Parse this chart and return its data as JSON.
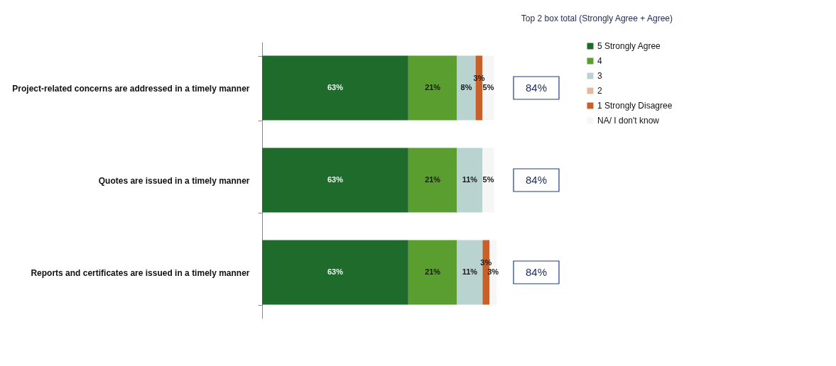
{
  "chart_data": {
    "type": "bar",
    "orientation": "horizontal",
    "stacked": true,
    "legend": "right",
    "grid": false,
    "categories": [
      "Project-related concerns are addressed in a timely manner",
      "Quotes are issued in a timely manner",
      "Reports and certificates are issued in a timely manner"
    ],
    "series": [
      {
        "name": "5 Strongly Agree",
        "color": "#1f6b2b",
        "values": [
          63,
          63,
          63
        ],
        "value_labels": [
          "63%",
          "63%",
          "63%"
        ]
      },
      {
        "name": "4",
        "color": "#5a9e2f",
        "values": [
          21,
          21,
          21
        ],
        "value_labels": [
          "21%",
          "21%",
          "21%"
        ]
      },
      {
        "name": "3",
        "color": "#b9d3d0",
        "values": [
          8,
          11,
          11
        ],
        "value_labels": [
          "8%",
          "11%",
          "11%"
        ]
      },
      {
        "name": "2",
        "color": "#e6b89c",
        "values": [
          null,
          null,
          null
        ]
      },
      {
        "name": "1 Strongly Disagree",
        "color": "#c8602a",
        "values": [
          3,
          null,
          3
        ],
        "value_labels": [
          "3%",
          null,
          "3%"
        ]
      },
      {
        "name": "NA/ I don't know",
        "color": "#f6f6f6",
        "values": [
          5,
          5,
          3
        ],
        "value_labels": [
          "5%",
          "5%",
          "3%"
        ]
      }
    ],
    "annotations": [
      "Top 2 box total (Strongly Agree + Agree)",
      "84%",
      "84%",
      "84%"
    ]
  }
}
